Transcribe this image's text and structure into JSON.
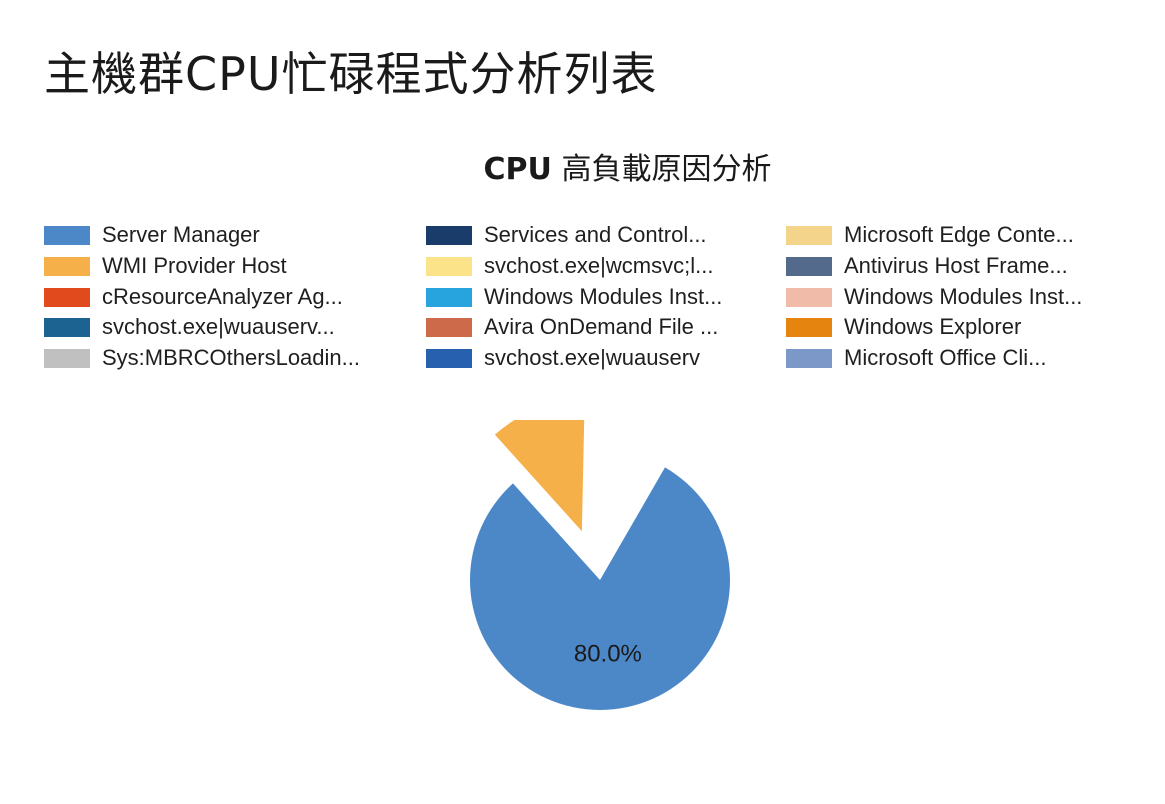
{
  "page": {
    "title": "主機群CPU忙碌程式分析列表"
  },
  "chart_data": {
    "type": "pie",
    "title_bold": "CPU",
    "title_rest": " 高負載原因分析",
    "legend_columns": 3,
    "legend": [
      {
        "label": "Server Manager",
        "color": "#4c88c8"
      },
      {
        "label": "WMI Provider Host",
        "color": "#f5b04a"
      },
      {
        "label": "cResourceAnalyzer Ag...",
        "color": "#e04a1c"
      },
      {
        "label": "svchost.exe|wuauserv...",
        "color": "#1c6391"
      },
      {
        "label": "Sys:MBRCOthersLoadin...",
        "color": "#c0c0c0"
      },
      {
        "label": "Services and Control...",
        "color": "#193c6b"
      },
      {
        "label": "svchost.exe|wcmsvc;l...",
        "color": "#fbe38a"
      },
      {
        "label": "Windows Modules Inst...",
        "color": "#27a3dd"
      },
      {
        "label": "Avira OnDemand File ...",
        "color": "#cc6a4a"
      },
      {
        "label": "svchost.exe|wuauserv",
        "color": "#2860b0"
      },
      {
        "label": "Microsoft Edge Conte...",
        "color": "#f3d48a"
      },
      {
        "label": "Antivirus Host Frame...",
        "color": "#546a8c"
      },
      {
        "label": "Windows Modules Inst...",
        "color": "#f0bba8"
      },
      {
        "label": "Windows Explorer",
        "color": "#e58510"
      },
      {
        "label": "Microsoft Office Cli...",
        "color": "#7b98c8"
      }
    ],
    "slices": [
      {
        "name": "Server Manager",
        "value": 80.0,
        "color": "#4c88c8",
        "label": "80.0%",
        "exploded": false
      },
      {
        "name": "WMI Provider Host",
        "value": 12.0,
        "color": "#f5b04a",
        "label": "",
        "exploded": true
      }
    ],
    "start_angle_deg": 30,
    "direction": "clockwise"
  }
}
